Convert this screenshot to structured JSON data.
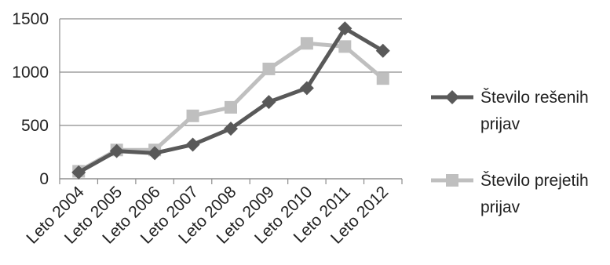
{
  "chart_data": {
    "type": "line",
    "title": "",
    "xlabel": "",
    "ylabel": "",
    "categories": [
      "Leto 2004",
      "Leto 2005",
      "Leto 2006",
      "Leto 2007",
      "Leto 2008",
      "Leto 2009",
      "Leto 2010",
      "Leto 2011",
      "Leto 2012"
    ],
    "ylim": [
      0,
      1500
    ],
    "yticks": [
      "0",
      "500",
      "1000",
      "1500"
    ],
    "grid": true,
    "legend_position": "right",
    "series": [
      {
        "name_lines": [
          "Število rešenih",
          "prijav"
        ],
        "values": [
          60,
          260,
          240,
          320,
          470,
          720,
          850,
          1410,
          1200
        ],
        "color": "#595959",
        "marker": "diamond"
      },
      {
        "name_lines": [
          "Število prejetih",
          "prijav"
        ],
        "values": [
          70,
          270,
          270,
          590,
          670,
          1030,
          1270,
          1240,
          940
        ],
        "color": "#bfbfbf",
        "marker": "square"
      }
    ]
  }
}
